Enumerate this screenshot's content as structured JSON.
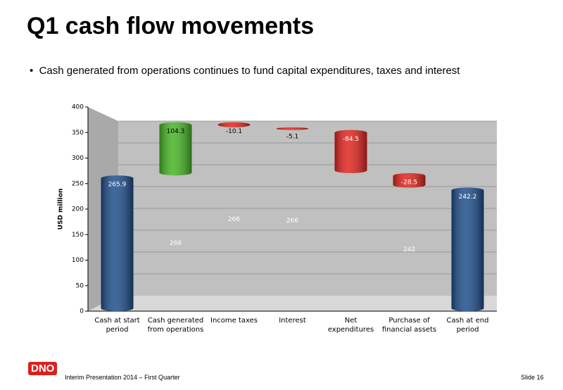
{
  "title": "Q1 cash flow movements",
  "bullet": "Cash generated from operations continues to fund capital expenditures, taxes and interest",
  "chart_data": {
    "type": "waterfall",
    "y_label": "USD million",
    "categories": [
      "Cash at start\nperiod",
      "Cash generated\nfrom operations",
      "Income taxes",
      "Interest",
      "Net expenditures",
      "Purchase of\nfinancial assets",
      "Cash at end\nperiod"
    ],
    "measure": [
      "absolute",
      "relative",
      "relative",
      "relative",
      "relative",
      "relative",
      "total"
    ],
    "values": [
      265.9,
      104.3,
      -10.1,
      -5.1,
      -84.5,
      -28.5,
      242.2
    ],
    "base_values": [
      null,
      266,
      266,
      266,
      null,
      242,
      null
    ],
    "colors": {
      "absolute": "#1d4d8a",
      "total": "#1d4d8a",
      "increase": "#45b523",
      "decrease": "#e2231c"
    },
    "ylim": [
      0,
      400
    ],
    "yticks": [
      0,
      50,
      100,
      150,
      200,
      250,
      300,
      350,
      400
    ],
    "grid": true
  },
  "footer": {
    "logo": "DNO",
    "text": "Interim Presentation 2014 – First Quarter",
    "slide": "Slide 16"
  }
}
